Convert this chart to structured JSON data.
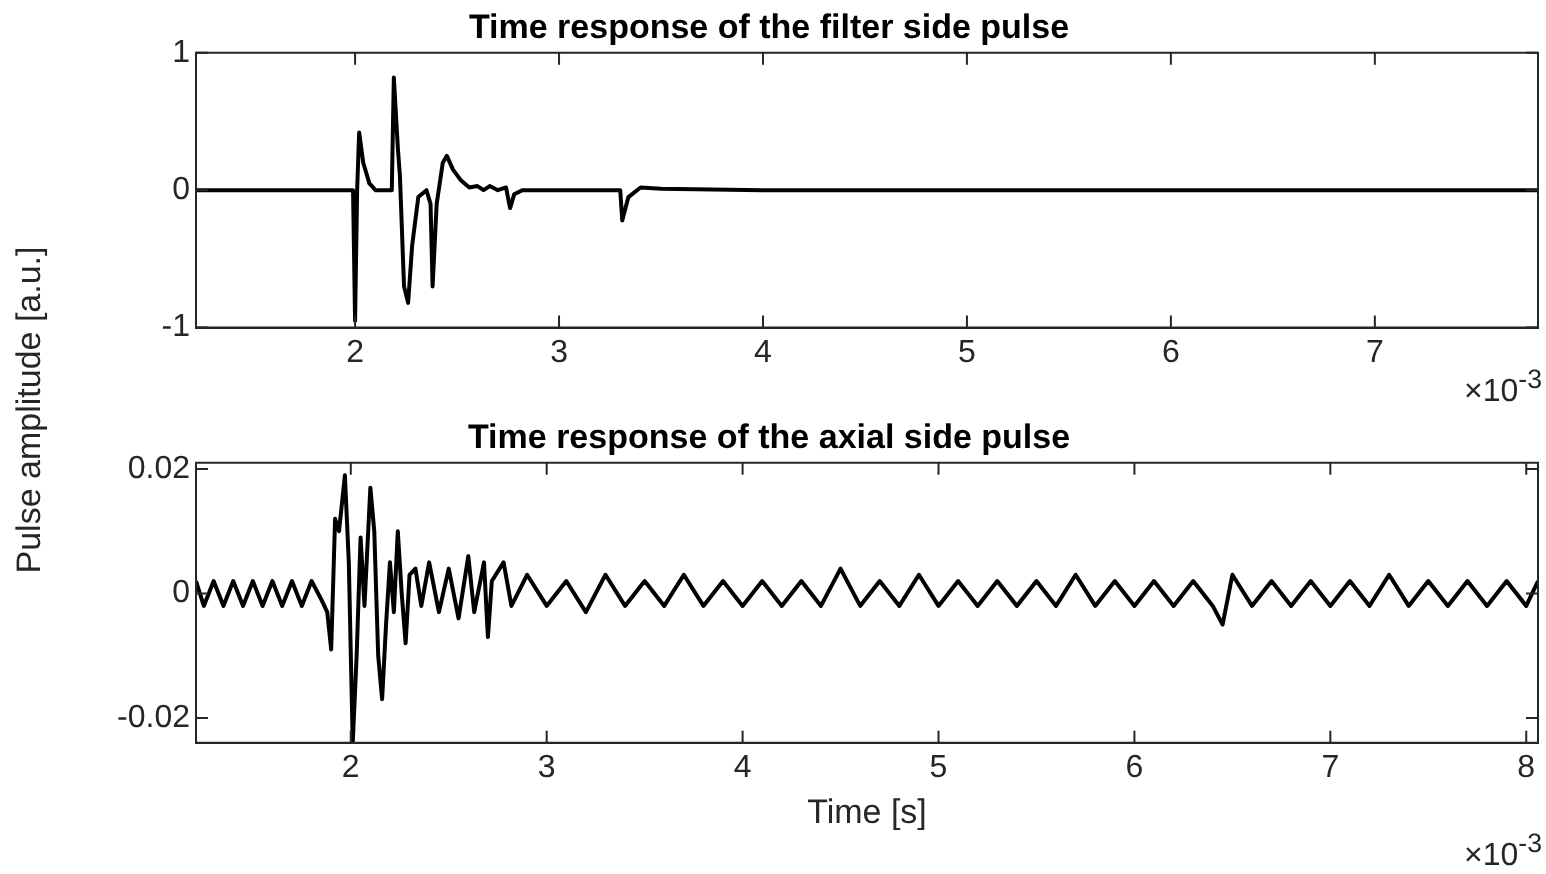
{
  "chart_data": [
    {
      "type": "line",
      "title": "Time response of the filter side pulse",
      "ylabel": "Pulse amplitude [a.u.]",
      "xlim": [
        1.22,
        7.8
      ],
      "xticks": [
        2,
        3,
        4,
        5,
        6,
        7
      ],
      "ylim": [
        -1,
        1
      ],
      "yticks": [
        -1,
        0,
        1
      ],
      "annotations": [
        "×10$^{-3}$"
      ],
      "legend": false,
      "series": [
        {
          "color": "#000000",
          "x": [
            1.22,
            1.99,
            2.0,
            2.01,
            2.02,
            2.04,
            2.07,
            2.1,
            2.18,
            2.19,
            2.21,
            2.22,
            2.24,
            2.26,
            2.28,
            2.31,
            2.35,
            2.37,
            2.38,
            2.4,
            2.43,
            2.45,
            2.48,
            2.52,
            2.56,
            2.6,
            2.63,
            2.66,
            2.7,
            2.74,
            2.76,
            2.78,
            2.82,
            3.3,
            3.31,
            3.34,
            3.4,
            3.5,
            4.0,
            7.8
          ],
          "values": [
            0,
            0,
            -0.95,
            0,
            0.42,
            0.2,
            0.05,
            0,
            0,
            0.82,
            0.3,
            0.1,
            -0.7,
            -0.82,
            -0.4,
            -0.05,
            0,
            -0.1,
            -0.7,
            -0.1,
            0.2,
            0.25,
            0.15,
            0.07,
            0.02,
            0.03,
            0,
            0.03,
            0,
            0.02,
            -0.13,
            -0.03,
            0,
            0,
            -0.22,
            -0.05,
            0.02,
            0.01,
            0,
            0
          ]
        }
      ]
    },
    {
      "type": "line",
      "title": "Time response of the axial side pulse",
      "xlabel": "Time [s]",
      "xlim": [
        1.21,
        8.06
      ],
      "xticks": [
        2,
        3,
        4,
        5,
        6,
        7,
        8
      ],
      "ylim": [
        -0.024,
        0.021
      ],
      "yticks": [
        -0.02,
        0,
        0.02
      ],
      "annotations": [
        "×10$^{-3}$"
      ],
      "legend": false,
      "series": [
        {
          "color": "#000000",
          "x": [
            1.21,
            1.25,
            1.3,
            1.35,
            1.4,
            1.45,
            1.5,
            1.55,
            1.6,
            1.65,
            1.7,
            1.75,
            1.8,
            1.85,
            1.88,
            1.9,
            1.92,
            1.94,
            1.97,
            1.99,
            2.01,
            2.03,
            2.05,
            2.07,
            2.1,
            2.12,
            2.14,
            2.16,
            2.18,
            2.2,
            2.22,
            2.24,
            2.26,
            2.28,
            2.3,
            2.33,
            2.36,
            2.4,
            2.45,
            2.5,
            2.55,
            2.6,
            2.63,
            2.68,
            2.7,
            2.72,
            2.78,
            2.82,
            2.9,
            3.0,
            3.1,
            3.2,
            3.3,
            3.4,
            3.5,
            3.6,
            3.7,
            3.8,
            3.9,
            4.0,
            4.1,
            4.2,
            4.3,
            4.4,
            4.5,
            4.6,
            4.7,
            4.8,
            4.9,
            5.0,
            5.1,
            5.2,
            5.3,
            5.4,
            5.5,
            5.6,
            5.7,
            5.8,
            5.9,
            6.0,
            6.1,
            6.2,
            6.3,
            6.4,
            6.45,
            6.5,
            6.6,
            6.7,
            6.8,
            6.9,
            7.0,
            7.1,
            7.2,
            7.3,
            7.4,
            7.5,
            7.6,
            7.7,
            7.8,
            7.9,
            8.0,
            8.06
          ],
          "values": [
            0.002,
            -0.002,
            0.002,
            -0.002,
            0.002,
            -0.002,
            0.002,
            -0.002,
            0.002,
            -0.002,
            0.002,
            -0.002,
            0.002,
            -0.001,
            -0.003,
            -0.009,
            0.012,
            0.01,
            0.019,
            0.005,
            -0.024,
            -0.01,
            0.009,
            -0.002,
            0.017,
            0.01,
            -0.01,
            -0.017,
            -0.005,
            0.005,
            -0.003,
            0.01,
            0,
            -0.008,
            0.003,
            0.004,
            -0.002,
            0.005,
            -0.003,
            0.004,
            -0.004,
            0.006,
            -0.003,
            0.005,
            -0.007,
            0.002,
            0.005,
            -0.002,
            0.003,
            -0.002,
            0.002,
            -0.003,
            0.003,
            -0.002,
            0.002,
            -0.002,
            0.003,
            -0.002,
            0.002,
            -0.002,
            0.002,
            -0.002,
            0.002,
            -0.002,
            0.004,
            -0.002,
            0.002,
            -0.002,
            0.003,
            -0.002,
            0.002,
            -0.002,
            0.002,
            -0.002,
            0.002,
            -0.002,
            0.003,
            -0.002,
            0.002,
            -0.002,
            0.002,
            -0.002,
            0.002,
            -0.002,
            -0.005,
            0.003,
            -0.002,
            0.002,
            -0.002,
            0.002,
            -0.002,
            0.002,
            -0.002,
            0.003,
            -0.002,
            0.002,
            -0.002,
            0.002,
            -0.002,
            0.002,
            -0.002,
            0.002
          ]
        }
      ]
    }
  ]
}
